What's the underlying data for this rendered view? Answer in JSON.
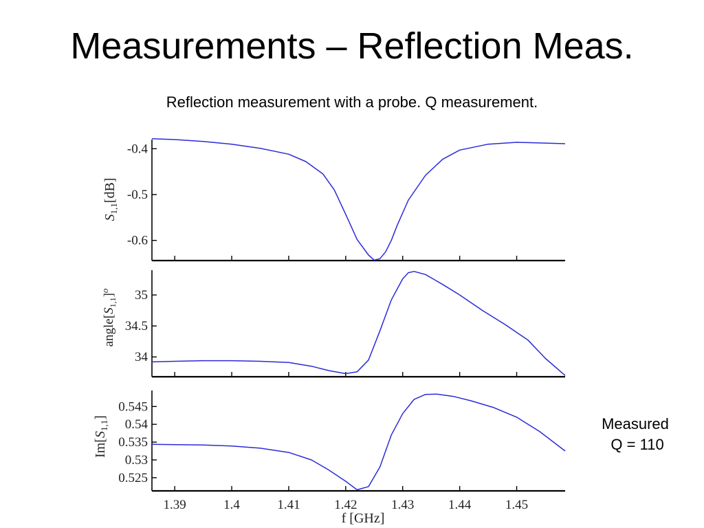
{
  "slide": {
    "title": "Measurements – Reflection Meas.",
    "subtitle": "Reflection measurement with a probe. Q measurement.",
    "note_line1": "Measured",
    "note_line2": " Q = 110"
  },
  "colors": {
    "series": "#2a2ad8",
    "axis": "#000000",
    "text": "#222222"
  },
  "chart_data": [
    {
      "type": "line",
      "ylabel": "S_{1,1}[dB]",
      "xlim": [
        1.386,
        1.4585
      ],
      "ylim": [
        -0.644,
        -0.38
      ],
      "yticks": [
        -0.6,
        -0.5,
        -0.4
      ],
      "ytick_labels": [
        "-0.6",
        "-0.5",
        "-0.4"
      ],
      "x": [
        1.386,
        1.39,
        1.395,
        1.4,
        1.405,
        1.41,
        1.413,
        1.416,
        1.418,
        1.42,
        1.422,
        1.424,
        1.425,
        1.426,
        1.427,
        1.428,
        1.429,
        1.431,
        1.434,
        1.437,
        1.44,
        1.445,
        1.45,
        1.4585
      ],
      "y": [
        -0.378,
        -0.38,
        -0.384,
        -0.39,
        -0.399,
        -0.412,
        -0.428,
        -0.455,
        -0.49,
        -0.543,
        -0.598,
        -0.632,
        -0.643,
        -0.64,
        -0.625,
        -0.6,
        -0.568,
        -0.512,
        -0.458,
        -0.423,
        -0.403,
        -0.39,
        -0.386,
        -0.389
      ]
    },
    {
      "type": "line",
      "ylabel": "angle[S_{1,1}]^o",
      "xlim": [
        1.386,
        1.4585
      ],
      "ylim": [
        33.68,
        35.4
      ],
      "yticks": [
        34,
        34.5,
        35
      ],
      "ytick_labels": [
        "34",
        "34.5",
        "35"
      ],
      "x": [
        1.386,
        1.39,
        1.395,
        1.4,
        1.405,
        1.41,
        1.414,
        1.417,
        1.42,
        1.422,
        1.424,
        1.426,
        1.428,
        1.43,
        1.431,
        1.432,
        1.434,
        1.437,
        1.44,
        1.444,
        1.448,
        1.452,
        1.455,
        1.4585
      ],
      "y": [
        33.92,
        33.93,
        33.94,
        33.94,
        33.93,
        33.91,
        33.85,
        33.78,
        33.73,
        33.76,
        33.95,
        34.42,
        34.92,
        35.26,
        35.36,
        35.38,
        35.33,
        35.17,
        35.0,
        34.75,
        34.52,
        34.27,
        33.98,
        33.7
      ]
    },
    {
      "type": "line",
      "ylabel": "Im[S_{1,1}]",
      "xlim": [
        1.386,
        1.4585
      ],
      "ylim": [
        0.5213,
        0.5495
      ],
      "yticks": [
        0.525,
        0.53,
        0.535,
        0.54,
        0.545
      ],
      "ytick_labels": [
        "0.525",
        "0.53",
        "0.535",
        "0.54",
        "0.545"
      ],
      "x": [
        1.386,
        1.39,
        1.395,
        1.4,
        1.405,
        1.41,
        1.414,
        1.417,
        1.42,
        1.422,
        1.424,
        1.426,
        1.428,
        1.43,
        1.432,
        1.434,
        1.436,
        1.439,
        1.442,
        1.446,
        1.45,
        1.454,
        1.4585
      ],
      "y": [
        0.5344,
        0.5343,
        0.5342,
        0.5339,
        0.5333,
        0.5321,
        0.53,
        0.5272,
        0.524,
        0.5216,
        0.5225,
        0.528,
        0.537,
        0.543,
        0.547,
        0.5484,
        0.5485,
        0.5478,
        0.5466,
        0.5447,
        0.542,
        0.538,
        0.5325
      ]
    }
  ],
  "x_axis": {
    "label": "f [GHz]",
    "ticks": [
      1.39,
      1.4,
      1.41,
      1.42,
      1.43,
      1.44,
      1.45
    ],
    "tick_labels": [
      "1.39",
      "1.4",
      "1.41",
      "1.42",
      "1.43",
      "1.44",
      "1.45"
    ]
  }
}
